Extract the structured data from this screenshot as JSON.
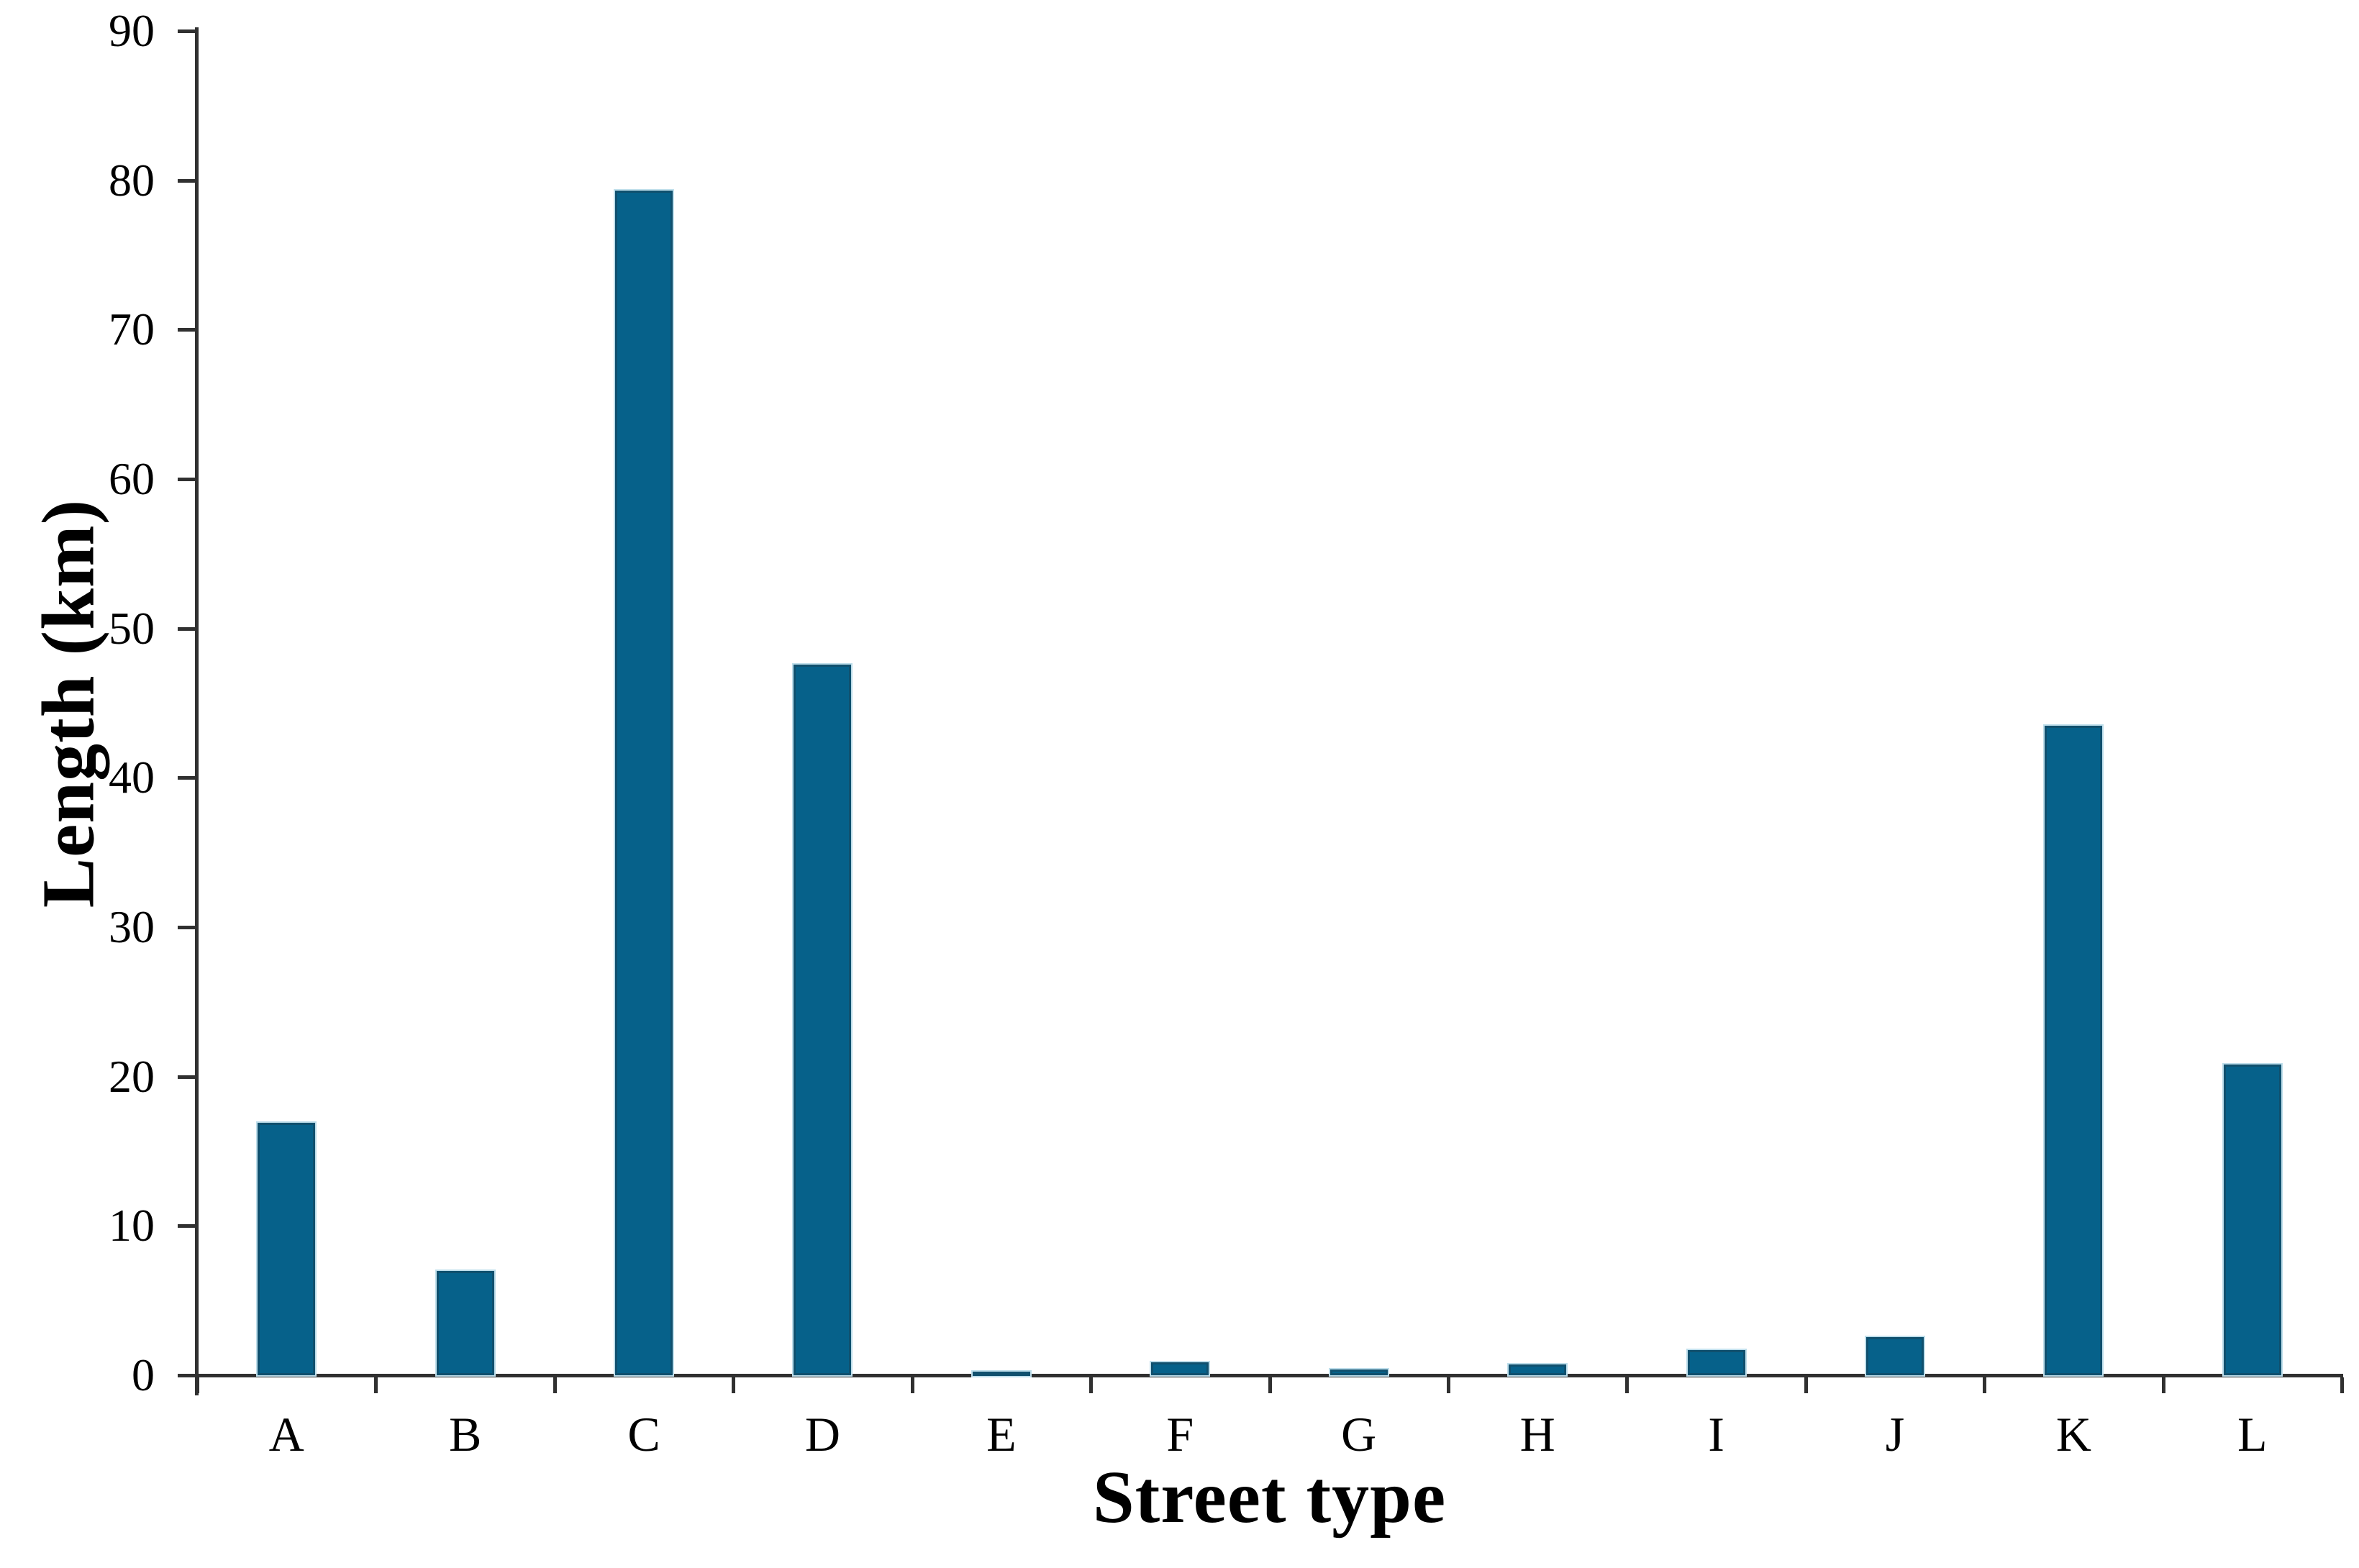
{
  "chart_data": {
    "type": "bar",
    "categories": [
      "A",
      "B",
      "C",
      "D",
      "E",
      "F",
      "G",
      "H",
      "I",
      "J",
      "K",
      "L"
    ],
    "values": [
      16.9,
      7.0,
      79.3,
      47.6,
      0.25,
      0.85,
      0.4,
      0.7,
      1.7,
      2.55,
      43.5,
      20.8
    ],
    "title": "",
    "xlabel": "Street type",
    "ylabel": "Length (km)",
    "ylim": [
      0,
      90
    ],
    "ytick_step": 10,
    "ytick_labels": [
      "0",
      "10",
      "20",
      "30",
      "40",
      "50",
      "60",
      "70",
      "80",
      "90"
    ],
    "grid": false,
    "legend_position": "none",
    "bar_color": "#06618a",
    "bar_edge_color": "#10506e",
    "bar_halo_color": "#bedeeb",
    "axis_color": "#303030",
    "text_color": "#000000",
    "background": "#ffffff"
  }
}
